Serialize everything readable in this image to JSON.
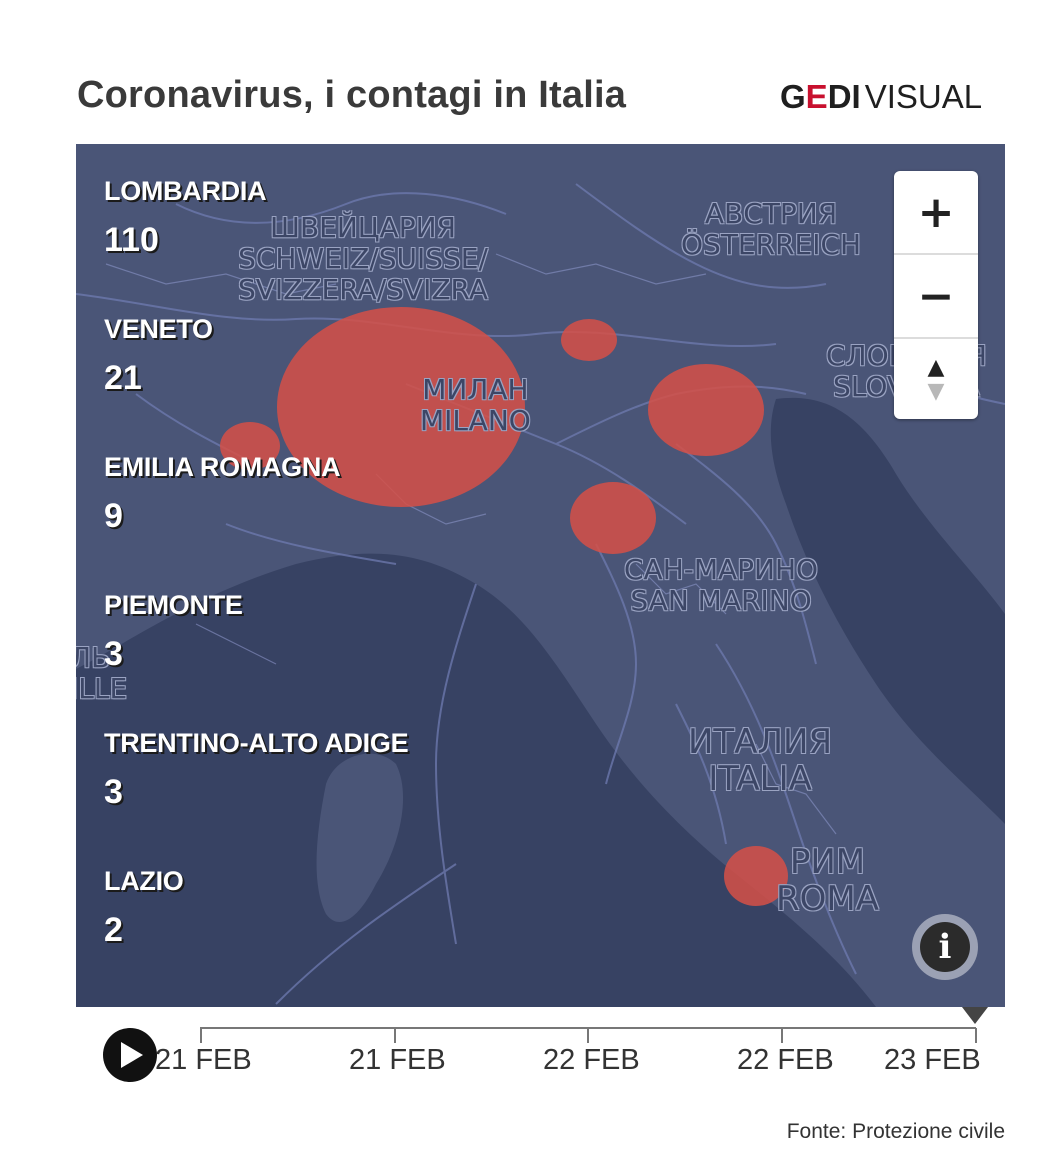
{
  "header": {
    "title": "Coronavirus, i contagi in Italia",
    "brand_g": "G",
    "brand_e": "E",
    "brand_di": "DI",
    "brand_visual": "VISUAL"
  },
  "map": {
    "labels": {
      "switzerland_ru": "ШВЕЙЦАРИЯ",
      "switzerland_local_1": "SCHWEIZ/SUISSE/",
      "switzerland_local_2": "SVIZZERA/SVIZRA",
      "austria_ru": "АВСТРИЯ",
      "austria_local": "ÖSTERREICH",
      "milano_ru": "МИЛАН",
      "milano": "MILANO",
      "slovenia_ru": "СЛОВЕНИЯ",
      "slovenia": "SLOVENIJA",
      "sanmarino_ru": "САН-МАРИНО",
      "sanmarino": "SAN MARINO",
      "italia_ru": "ИТАЛИЯ",
      "italia": "ITALIA",
      "roma_ru": "РИМ",
      "roma": "ROMA",
      "edge_left_1": "ЛЬ",
      "edge_left_2": "ILLE"
    },
    "colors": {
      "land": "#4a5577",
      "sea": "#374263",
      "bubble": "#d65046",
      "roads": "#6f7bb0"
    }
  },
  "regions": [
    {
      "name": "LOMBARDIA",
      "value": "110"
    },
    {
      "name": "VENETO",
      "value": "21"
    },
    {
      "name": "EMILIA ROMAGNA",
      "value": "9"
    },
    {
      "name": "PIEMONTE",
      "value": "3"
    },
    {
      "name": "TRENTINO-ALTO ADIGE",
      "value": "3"
    },
    {
      "name": "LAZIO",
      "value": "2"
    }
  ],
  "controls": {
    "zoom_in": "+",
    "zoom_out": "−",
    "compass_up": "▲",
    "compass_down": "▼",
    "info": "i"
  },
  "timeline": {
    "ticks": [
      "21 FEB",
      "21 FEB",
      "22 FEB",
      "22 FEB",
      "23 FEB"
    ],
    "current": "23 FEB"
  },
  "footer": {
    "source": "Fonte: Protezione civile"
  }
}
